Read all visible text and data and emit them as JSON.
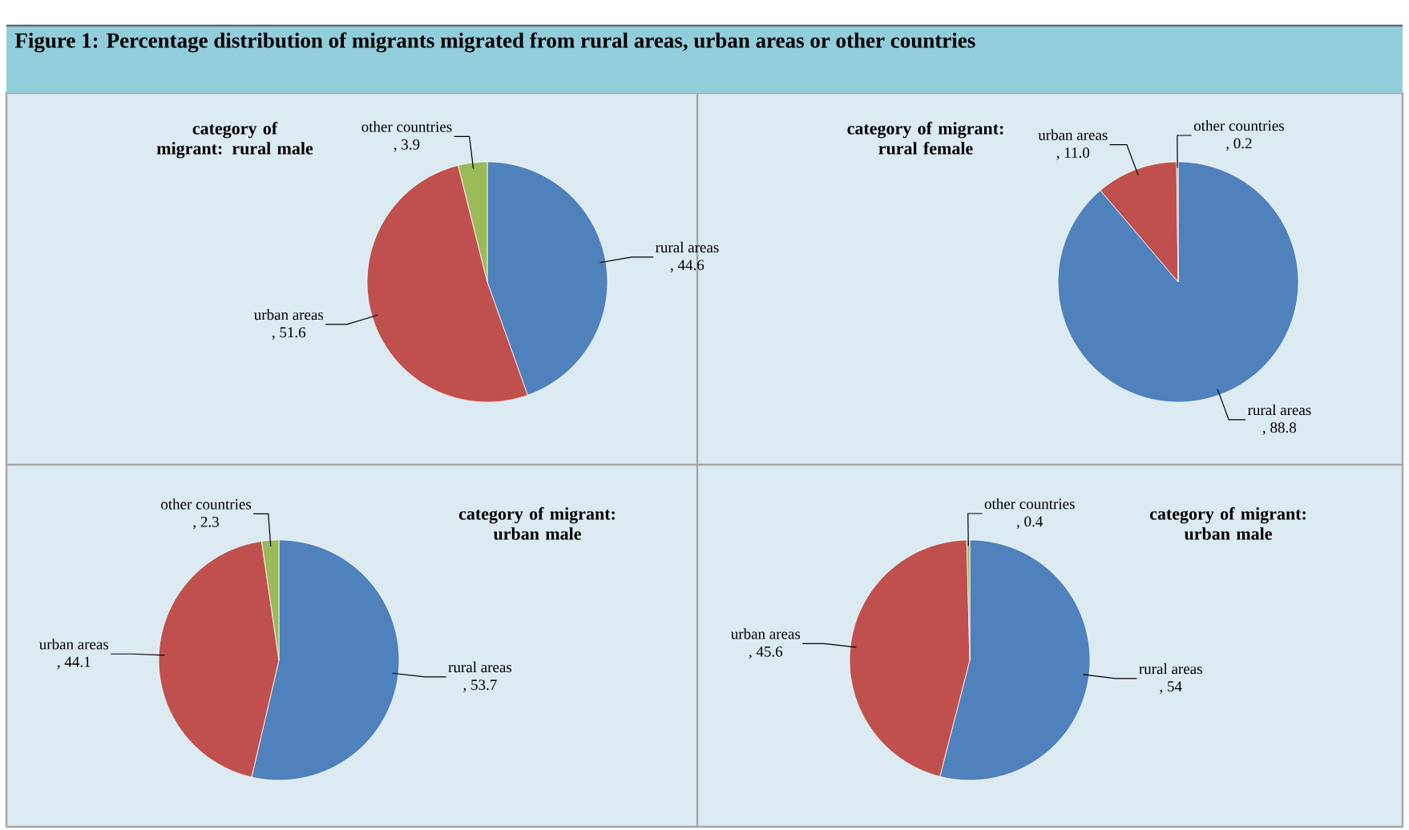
{
  "chart_data": [
    {
      "type": "other",
      "title": "Figure 1: Percentage distribution of migrants migrated from rural areas, urban areas or other countries"
    },
    {
      "type": "pie",
      "title": "category of migrant: rural male",
      "categories": [
        "rural areas",
        "urban areas",
        "other countries"
      ],
      "values": [
        44.6,
        51.6,
        3.9
      ],
      "colors": [
        "#4f81bd",
        "#c0504d",
        "#9bbb59"
      ],
      "value_labels": [
        ", 44.6",
        ", 51.6",
        ", 3.9"
      ]
    },
    {
      "type": "pie",
      "title": "category of migrant: rural female",
      "categories": [
        "rural areas",
        "urban areas",
        "other countries"
      ],
      "values": [
        88.8,
        11.0,
        0.2
      ],
      "colors": [
        "#4f81bd",
        "#c0504d",
        "#9bbb59"
      ],
      "value_labels": [
        ", 88.8",
        ", 11.0",
        ", 0.2"
      ]
    },
    {
      "type": "pie",
      "title": "category of migrant: urban male",
      "categories": [
        "rural areas",
        "urban areas",
        "other countries"
      ],
      "values": [
        53.7,
        44.1,
        2.3
      ],
      "colors": [
        "#4f81bd",
        "#c0504d",
        "#9bbb59"
      ],
      "value_labels": [
        ", 53.7",
        ", 44.1",
        ", 2.3"
      ]
    },
    {
      "type": "pie",
      "title": "category of migrant: urban male",
      "categories": [
        "rural areas",
        "urban areas",
        "other countries"
      ],
      "values": [
        54,
        45.6,
        0.4
      ],
      "colors": [
        "#4f81bd",
        "#c0504d",
        "#9bbb59"
      ],
      "value_labels": [
        ", 54",
        ", 45.6",
        ", 0.4"
      ]
    }
  ]
}
